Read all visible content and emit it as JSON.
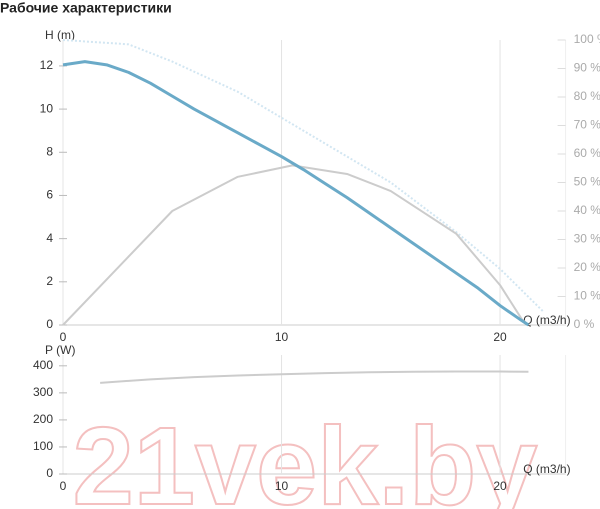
{
  "title": "Рабочие характеристики",
  "watermark": "21vek.by",
  "chart_data": [
    {
      "type": "line",
      "xlabel": "Q (m3/h)",
      "ylabel": "H (m)",
      "xlim": [
        0,
        23
      ],
      "ylim": [
        0,
        13.2
      ],
      "y2lim": [
        0,
        100
      ],
      "xticks": [
        0,
        10,
        20
      ],
      "yticks": [
        0,
        2,
        4,
        6,
        8,
        10,
        12
      ],
      "y2ticks": [
        {
          "value": 0,
          "label": "0 %"
        },
        {
          "value": 10,
          "label": "10 %"
        },
        {
          "value": 20,
          "label": "20 %"
        },
        {
          "value": 30,
          "label": "30 %"
        },
        {
          "value": 40,
          "label": "40 %"
        },
        {
          "value": 50,
          "label": "50 %"
        },
        {
          "value": 60,
          "label": "60 %"
        },
        {
          "value": 70,
          "label": "70 %"
        },
        {
          "value": 80,
          "label": "80 %"
        },
        {
          "value": 90,
          "label": "90 %"
        },
        {
          "value": 100,
          "label": "100 %"
        }
      ],
      "grid": true,
      "series": [
        {
          "color": "#d2e6f2",
          "dashed": true,
          "x": [
            0,
            3,
            5,
            8,
            10,
            13,
            15,
            18,
            20,
            22
          ],
          "values": [
            13.2,
            13.0,
            12.2,
            10.8,
            9.6,
            7.8,
            6.6,
            4.3,
            2.6,
            0.6
          ]
        },
        {
          "color": "#cccccc",
          "axis": "y2",
          "x": [
            0,
            2,
            5,
            8,
            10.5,
            13,
            15,
            18,
            20,
            21,
            21.3
          ],
          "values": [
            0,
            16,
            40,
            52,
            56,
            53,
            47,
            32,
            14,
            2,
            0
          ]
        },
        {
          "color": "#6aaac8",
          "width": 3,
          "x": [
            0,
            1,
            2,
            3,
            4,
            5,
            6,
            7,
            8,
            9,
            10,
            11,
            12,
            13,
            14,
            15,
            16,
            17,
            18,
            19,
            20,
            21,
            21.3
          ],
          "values": [
            12.05,
            12.2,
            12.05,
            11.7,
            11.2,
            10.6,
            10.0,
            9.45,
            8.9,
            8.35,
            7.8,
            7.2,
            6.55,
            5.9,
            5.2,
            4.5,
            3.8,
            3.1,
            2.4,
            1.7,
            0.9,
            0.2,
            0
          ]
        }
      ]
    },
    {
      "type": "line",
      "xlabel": "Q (m3/h)",
      "ylabel": "P (W)",
      "xlim": [
        0,
        23
      ],
      "ylim": [
        0,
        440
      ],
      "xticks": [
        0,
        10,
        20
      ],
      "yticks": [
        0,
        100,
        200,
        300,
        400
      ],
      "grid": true,
      "series": [
        {
          "color": "#cccccc",
          "x": [
            1.7,
            4,
            6,
            8,
            10,
            12,
            14,
            16,
            18,
            20,
            21.3
          ],
          "values": [
            337,
            350,
            358,
            364,
            369,
            373,
            376,
            378,
            379,
            379,
            378
          ]
        }
      ]
    }
  ]
}
